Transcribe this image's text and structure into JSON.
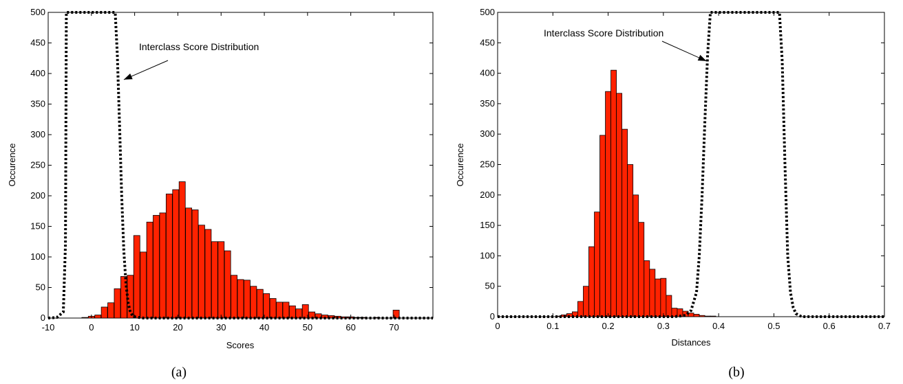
{
  "chart_data": [
    {
      "type": "bar",
      "caption": "(a)",
      "xlabel": "Scores",
      "ylabel": "Occurence",
      "xlim": [
        -10,
        79
      ],
      "ylim": [
        0,
        500
      ],
      "xticks": [
        -10,
        0,
        10,
        20,
        30,
        40,
        50,
        60,
        70
      ],
      "yticks": [
        0,
        50,
        100,
        150,
        200,
        250,
        300,
        350,
        400,
        450,
        500
      ],
      "grid": false,
      "bar_color": "#ff2200",
      "bars": {
        "x": [
          -1.5,
          0,
          1.5,
          3,
          4.5,
          6,
          7.5,
          9,
          10.5,
          12,
          13.5,
          15,
          16.5,
          18,
          19.5,
          21,
          22.5,
          24,
          25.5,
          27,
          28.5,
          30,
          31.5,
          33,
          34.5,
          36,
          37.5,
          39,
          40.5,
          42,
          43.5,
          45,
          46.5,
          48,
          49.5,
          51,
          52.5,
          54,
          55.5,
          57,
          58.5,
          60,
          61.5,
          63,
          64.5,
          66,
          67.5,
          69,
          70.5
        ],
        "values": [
          1,
          3,
          5,
          18,
          25,
          48,
          68,
          70,
          135,
          108,
          157,
          168,
          172,
          203,
          210,
          223,
          180,
          177,
          152,
          145,
          125,
          125,
          110,
          70,
          63,
          62,
          52,
          47,
          40,
          32,
          26,
          26,
          20,
          15,
          22,
          10,
          7,
          5,
          4,
          3,
          2,
          2,
          1,
          1,
          0,
          1,
          0,
          0,
          13
        ]
      },
      "curve": {
        "style": "dotted",
        "x": [
          -12,
          -8,
          -6.5,
          -6,
          -5.8,
          -5.5,
          5.5,
          6,
          6.5,
          7,
          7.5,
          8,
          8.5,
          9,
          9.5,
          10,
          12,
          79
        ],
        "values": [
          0,
          1,
          10,
          120,
          500,
          500,
          500,
          430,
          320,
          200,
          110,
          55,
          25,
          10,
          4,
          2,
          0,
          0
        ]
      },
      "annotation": {
        "text": "Interclass Score Distribution",
        "arrow_to": [
          7.5,
          390
        ]
      }
    },
    {
      "type": "bar",
      "caption": "(b)",
      "xlabel": "Distances",
      "ylabel": "Occurence",
      "xlim": [
        0,
        0.7
      ],
      "ylim": [
        0,
        500
      ],
      "xticks": [
        0,
        0.1,
        0.2,
        0.3,
        0.4,
        0.5,
        0.6,
        0.7
      ],
      "yticks": [
        0,
        50,
        100,
        150,
        200,
        250,
        300,
        350,
        400,
        450,
        500
      ],
      "grid": false,
      "bar_color": "#ff2200",
      "bars": {
        "x": [
          0.11,
          0.12,
          0.13,
          0.14,
          0.15,
          0.16,
          0.17,
          0.18,
          0.19,
          0.2,
          0.21,
          0.22,
          0.23,
          0.24,
          0.25,
          0.26,
          0.27,
          0.28,
          0.29,
          0.3,
          0.31,
          0.32,
          0.33,
          0.34,
          0.35,
          0.36,
          0.37,
          0.38,
          0.39,
          0.4,
          0.41,
          0.42,
          0.43,
          0.44,
          0.45
        ],
        "values": [
          1,
          3,
          5,
          8,
          25,
          50,
          115,
          172,
          298,
          370,
          405,
          367,
          308,
          250,
          200,
          155,
          92,
          78,
          62,
          63,
          35,
          14,
          13,
          9,
          6,
          4,
          2,
          1,
          1,
          0,
          0,
          0,
          0,
          0,
          0
        ]
      },
      "curve": {
        "style": "dotted",
        "x": [
          0,
          0.32,
          0.34,
          0.35,
          0.36,
          0.365,
          0.37,
          0.375,
          0.38,
          0.385,
          0.39,
          0.51,
          0.515,
          0.52,
          0.525,
          0.53,
          0.535,
          0.54,
          0.55,
          0.7
        ],
        "values": [
          0,
          0,
          2,
          10,
          40,
          100,
          200,
          320,
          430,
          500,
          500,
          500,
          420,
          250,
          100,
          40,
          15,
          5,
          0,
          0
        ]
      },
      "annotation": {
        "text": "Interclass Score Distribution",
        "arrow_to": [
          0.378,
          420
        ]
      }
    }
  ]
}
